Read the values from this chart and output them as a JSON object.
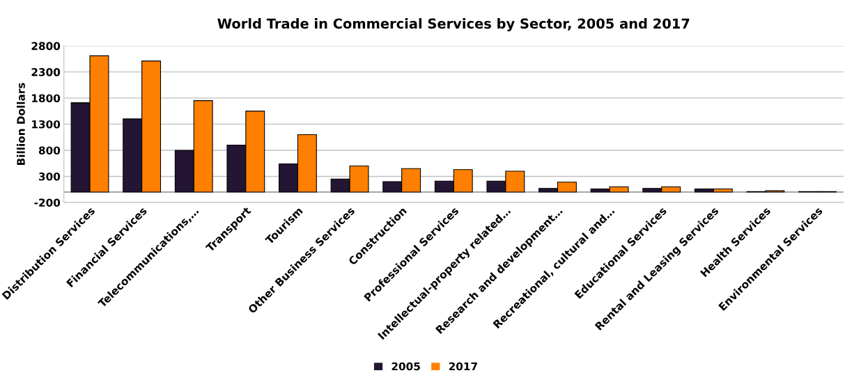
{
  "chart_data": {
    "type": "bar",
    "title": "World Trade in Commercial Services by Sector, 2005 and 2017",
    "ylabel": "Billion Dollars",
    "categories": [
      "Distribution Services",
      "Financial Services",
      "Telecommunications,…",
      "Transport",
      "Tourism",
      "Other Business Services",
      "Construction",
      "Professional Services",
      "Intellectual-property related…",
      "Research and development…",
      "Recreational, cultural and…",
      "Educational Services",
      "Rental and Leasing Services",
      "Health Services",
      "Environmental Services"
    ],
    "series": [
      {
        "name": "2005",
        "color": "#231533",
        "values": [
          1710,
          1400,
          800,
          900,
          540,
          250,
          200,
          210,
          210,
          70,
          60,
          70,
          60,
          10,
          10
        ]
      },
      {
        "name": "2017",
        "color": "#ff8000",
        "values": [
          2610,
          2510,
          1750,
          1550,
          1100,
          500,
          450,
          430,
          400,
          190,
          100,
          100,
          60,
          25,
          10
        ]
      }
    ],
    "ylim": [
      -200,
      2800
    ],
    "yticks": [
      -200,
      300,
      800,
      1300,
      1800,
      2300,
      2800
    ],
    "grid": "y",
    "legend": "bottom"
  }
}
